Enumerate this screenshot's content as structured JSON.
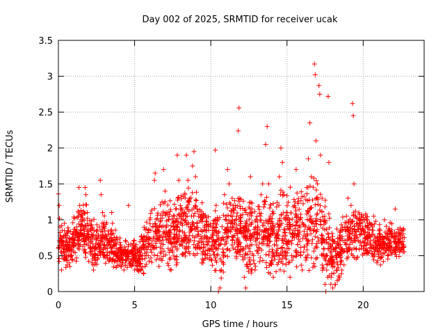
{
  "chart_data": {
    "type": "scatter",
    "title": "Day 002 of 2025, SRMTID for receiver ucak",
    "xlabel": "GPS time / hours",
    "ylabel": "SRMTID / TECUs",
    "xlim": [
      0,
      24
    ],
    "ylim": [
      0,
      3.5
    ],
    "x_ticks": [
      0,
      5,
      10,
      15,
      20
    ],
    "x_tick_labels": [
      "0",
      "5",
      "10",
      "15",
      "20"
    ],
    "y_ticks": [
      0,
      0.5,
      1,
      1.5,
      2,
      2.5,
      3,
      3.5
    ],
    "y_tick_labels": [
      "0",
      "0.5",
      "1",
      "1.5",
      "2",
      "2.5",
      "3",
      "3.5"
    ],
    "grid": true,
    "marker": "plus",
    "series": [
      {
        "name": "ucak",
        "color": "#ff0000",
        "points": [
          [
            0.0,
            1.36
          ],
          [
            0.05,
            1.2
          ],
          [
            0.1,
            0.9
          ],
          [
            0.15,
            0.55
          ],
          [
            0.2,
            0.3
          ],
          [
            0.25,
            0.85
          ],
          [
            0.3,
            0.7
          ],
          [
            0.35,
            0.45
          ],
          [
            0.4,
            0.95
          ],
          [
            0.45,
            0.65
          ],
          [
            0.5,
            0.8
          ],
          [
            0.55,
            0.5
          ],
          [
            0.6,
            0.6
          ],
          [
            0.7,
            0.4
          ],
          [
            0.75,
            0.35
          ],
          [
            0.8,
            0.5
          ],
          [
            0.9,
            0.45
          ],
          [
            1.0,
            0.55
          ],
          [
            1.1,
            0.75
          ],
          [
            1.2,
            0.9
          ],
          [
            1.3,
            1.05
          ],
          [
            1.35,
            1.45
          ],
          [
            1.4,
            1.2
          ],
          [
            1.5,
            0.85
          ],
          [
            1.6,
            1.0
          ],
          [
            1.7,
            0.7
          ],
          [
            1.75,
            1.45
          ],
          [
            1.8,
            1.35
          ],
          [
            1.9,
            1.1
          ],
          [
            2.0,
            0.8
          ],
          [
            2.1,
            0.55
          ],
          [
            2.2,
            0.4
          ],
          [
            2.3,
            0.3
          ],
          [
            2.4,
            0.45
          ],
          [
            2.5,
            0.6
          ],
          [
            2.6,
            0.5
          ],
          [
            2.7,
            0.9
          ],
          [
            2.75,
            1.55
          ],
          [
            2.8,
            1.35
          ],
          [
            2.9,
            1.1
          ],
          [
            3.0,
            0.75
          ],
          [
            3.1,
            0.6
          ],
          [
            3.2,
            0.55
          ],
          [
            3.3,
            0.8
          ],
          [
            3.4,
            0.65
          ],
          [
            3.5,
            1.1
          ],
          [
            3.55,
            0.95
          ],
          [
            3.6,
            0.45
          ],
          [
            3.7,
            0.55
          ],
          [
            3.8,
            0.6
          ],
          [
            3.9,
            0.5
          ],
          [
            4.0,
            0.45
          ],
          [
            4.1,
            0.35
          ],
          [
            4.2,
            0.4
          ],
          [
            4.3,
            0.3
          ],
          [
            4.4,
            0.5
          ],
          [
            4.5,
            0.55
          ],
          [
            4.6,
            1.2
          ],
          [
            4.7,
            0.4
          ],
          [
            4.8,
            0.35
          ],
          [
            4.9,
            0.45
          ],
          [
            5.0,
            0.3
          ],
          [
            5.1,
            0.5
          ],
          [
            5.2,
            0.4
          ],
          [
            5.3,
            0.35
          ],
          [
            5.4,
            0.3
          ],
          [
            5.5,
            0.45
          ],
          [
            5.6,
            0.25
          ],
          [
            5.7,
            0.35
          ],
          [
            5.8,
            0.55
          ],
          [
            5.9,
            0.75
          ],
          [
            6.0,
            1.0
          ],
          [
            6.1,
            0.65
          ],
          [
            6.2,
            0.9
          ],
          [
            6.3,
            1.55
          ],
          [
            6.35,
            1.65
          ],
          [
            6.4,
            0.7
          ],
          [
            6.5,
            0.5
          ],
          [
            6.6,
            0.35
          ],
          [
            6.7,
            0.55
          ],
          [
            6.8,
            1.25
          ],
          [
            6.9,
            1.7
          ],
          [
            7.0,
            1.4
          ],
          [
            7.1,
            0.9
          ],
          [
            7.2,
            0.6
          ],
          [
            7.3,
            0.45
          ],
          [
            7.4,
            0.3
          ],
          [
            7.5,
            0.55
          ],
          [
            7.6,
            0.8
          ],
          [
            7.7,
            1.15
          ],
          [
            7.8,
            1.9
          ],
          [
            7.9,
            1.55
          ],
          [
            8.0,
            1.2
          ],
          [
            8.1,
            0.95
          ],
          [
            8.2,
            0.7
          ],
          [
            8.3,
            1.35
          ],
          [
            8.4,
            1.9
          ],
          [
            8.5,
            1.55
          ],
          [
            8.6,
            1.25
          ],
          [
            8.7,
            0.85
          ],
          [
            8.8,
            1.75
          ],
          [
            8.9,
            1.95
          ],
          [
            9.0,
            1.6
          ],
          [
            9.1,
            1.15
          ],
          [
            9.2,
            0.8
          ],
          [
            9.3,
            0.6
          ],
          [
            9.4,
            0.4
          ],
          [
            9.5,
            0.55
          ],
          [
            9.6,
            0.75
          ],
          [
            9.7,
            0.9
          ],
          [
            9.8,
            0.65
          ],
          [
            9.9,
            0.45
          ],
          [
            10.0,
            0.6
          ],
          [
            10.1,
            0.85
          ],
          [
            10.2,
            0.7
          ],
          [
            10.3,
            1.97
          ],
          [
            10.35,
            1.2
          ],
          [
            10.4,
            0.5
          ],
          [
            10.5,
            0.0
          ],
          [
            10.6,
            0.05
          ],
          [
            10.7,
            0.3
          ],
          [
            10.8,
            0.55
          ],
          [
            10.9,
            1.35
          ],
          [
            11.0,
            1.05
          ],
          [
            11.1,
            1.7
          ],
          [
            11.2,
            1.5
          ],
          [
            11.3,
            0.9
          ],
          [
            11.4,
            0.65
          ],
          [
            11.5,
            0.9
          ],
          [
            11.6,
            1.2
          ],
          [
            11.7,
            1.05
          ],
          [
            11.8,
            2.24
          ],
          [
            11.85,
            2.56
          ],
          [
            11.9,
            1.3
          ],
          [
            12.0,
            0.85
          ],
          [
            12.1,
            0.6
          ],
          [
            12.2,
            0.2
          ],
          [
            12.3,
            0.05
          ],
          [
            12.4,
            0.35
          ],
          [
            12.5,
            0.6
          ],
          [
            12.6,
            1.6
          ],
          [
            12.7,
            1.15
          ],
          [
            12.8,
            0.5
          ],
          [
            12.9,
            0.3
          ],
          [
            13.0,
            0.65
          ],
          [
            13.1,
            0.9
          ],
          [
            13.2,
            0.6
          ],
          [
            13.3,
            1.35
          ],
          [
            13.4,
            1.5
          ],
          [
            13.5,
            1.25
          ],
          [
            13.6,
            2.05
          ],
          [
            13.7,
            2.3
          ],
          [
            13.8,
            1.5
          ],
          [
            13.9,
            0.7
          ],
          [
            14.0,
            0.4
          ],
          [
            14.1,
            0.2
          ],
          [
            14.2,
            0.45
          ],
          [
            14.3,
            0.75
          ],
          [
            14.4,
            0.95
          ],
          [
            14.5,
            1.6
          ],
          [
            14.6,
            2.0
          ],
          [
            14.7,
            1.8
          ],
          [
            14.8,
            1.35
          ],
          [
            14.9,
            1.0
          ],
          [
            15.0,
            0.6
          ],
          [
            15.1,
            0.4
          ],
          [
            15.2,
            0.2
          ],
          [
            15.3,
            0.5
          ],
          [
            15.4,
            0.85
          ],
          [
            15.5,
            1.2
          ],
          [
            15.6,
            1.7
          ],
          [
            15.7,
            1.25
          ],
          [
            15.8,
            0.8
          ],
          [
            15.9,
            0.5
          ],
          [
            16.0,
            0.3
          ],
          [
            16.1,
            0.55
          ],
          [
            16.2,
            0.9
          ],
          [
            16.3,
            1.45
          ],
          [
            16.4,
            1.85
          ],
          [
            16.5,
            2.35
          ],
          [
            16.6,
            1.6
          ],
          [
            16.7,
            0.95
          ],
          [
            16.8,
            3.17
          ],
          [
            16.85,
            3.02
          ],
          [
            16.9,
            2.1
          ],
          [
            17.0,
            1.5
          ],
          [
            17.1,
            2.87
          ],
          [
            17.15,
            2.75
          ],
          [
            17.2,
            1.9
          ],
          [
            17.3,
            1.3
          ],
          [
            17.4,
            0.6
          ],
          [
            17.5,
            0.1
          ],
          [
            17.55,
            0.0
          ],
          [
            17.6,
            0.3
          ],
          [
            17.7,
            2.72
          ],
          [
            17.75,
            1.8
          ],
          [
            17.8,
            0.6
          ],
          [
            17.9,
            0.2
          ],
          [
            18.0,
            0.05
          ],
          [
            18.1,
            0.35
          ],
          [
            18.2,
            0.6
          ],
          [
            18.3,
            0.15
          ],
          [
            18.4,
            0.5
          ],
          [
            18.5,
            0.85
          ],
          [
            18.6,
            0.3
          ],
          [
            18.7,
            0.55
          ],
          [
            18.8,
            0.9
          ],
          [
            18.9,
            1.05
          ],
          [
            19.0,
            1.3
          ],
          [
            19.1,
            0.8
          ],
          [
            19.2,
            1.2
          ],
          [
            19.3,
            2.62
          ],
          [
            19.35,
            2.45
          ],
          [
            19.4,
            1.5
          ],
          [
            19.5,
            1.05
          ],
          [
            19.6,
            0.75
          ],
          [
            19.7,
            0.9
          ],
          [
            19.8,
            0.7
          ],
          [
            19.9,
            0.6
          ],
          [
            20.0,
            0.85
          ],
          [
            20.1,
            1.0
          ],
          [
            20.2,
            0.75
          ],
          [
            20.3,
            0.55
          ],
          [
            20.4,
            0.8
          ],
          [
            20.5,
            0.65
          ],
          [
            20.6,
            0.9
          ],
          [
            20.7,
            1.05
          ],
          [
            20.8,
            0.6
          ],
          [
            20.9,
            0.4
          ],
          [
            21.0,
            0.7
          ],
          [
            21.1,
            0.85
          ],
          [
            21.2,
            0.6
          ],
          [
            21.3,
            0.75
          ],
          [
            21.4,
            1.0
          ],
          [
            21.5,
            0.65
          ],
          [
            21.6,
            0.5
          ],
          [
            21.7,
            0.8
          ],
          [
            21.8,
            0.7
          ],
          [
            21.9,
            0.55
          ],
          [
            22.0,
            0.75
          ],
          [
            22.1,
            1.15
          ],
          [
            22.2,
            0.6
          ],
          [
            22.3,
            0.7
          ],
          [
            22.4,
            0.55
          ],
          [
            22.5,
            0.8
          ],
          [
            22.6,
            0.65
          ],
          [
            22.7,
            0.75
          ]
        ],
        "envelope": {
          "x": [
            0.0,
            0.5,
            1.0,
            1.5,
            2.0,
            2.5,
            3.0,
            3.5,
            4.0,
            4.5,
            5.0,
            5.5,
            6.0,
            6.5,
            7.0,
            7.5,
            8.0,
            8.5,
            9.0,
            9.5,
            10.0,
            10.5,
            11.0,
            11.5,
            12.0,
            12.5,
            13.0,
            13.5,
            14.0,
            14.5,
            15.0,
            15.5,
            16.0,
            16.5,
            17.0,
            17.5,
            18.0,
            18.5,
            19.0,
            19.5,
            20.0,
            20.5,
            21.0,
            21.5,
            22.0,
            22.7
          ],
          "low": [
            0.3,
            0.3,
            0.35,
            0.45,
            0.3,
            0.3,
            0.35,
            0.3,
            0.25,
            0.25,
            0.25,
            0.2,
            0.3,
            0.3,
            0.2,
            0.3,
            0.35,
            0.35,
            0.4,
            0.35,
            0.3,
            0.1,
            0.3,
            0.35,
            0.2,
            0.15,
            0.25,
            0.25,
            0.2,
            0.2,
            0.25,
            0.2,
            0.2,
            0.25,
            0.2,
            0.05,
            0.0,
            0.1,
            0.35,
            0.45,
            0.4,
            0.4,
            0.35,
            0.35,
            0.4,
            0.45
          ],
          "high": [
            1.0,
            0.8,
            0.95,
            1.2,
            1.1,
            0.9,
            1.0,
            0.85,
            0.75,
            0.7,
            0.7,
            0.8,
            1.1,
            1.2,
            1.25,
            1.2,
            1.3,
            1.35,
            1.35,
            1.15,
            1.1,
            1.05,
            1.3,
            1.3,
            1.2,
            1.2,
            1.2,
            1.25,
            1.2,
            1.3,
            1.35,
            1.3,
            1.3,
            1.4,
            1.45,
            1.3,
            0.8,
            0.9,
            1.1,
            1.2,
            1.05,
            1.0,
            0.95,
            0.9,
            0.95,
            0.85
          ]
        }
      }
    ]
  }
}
